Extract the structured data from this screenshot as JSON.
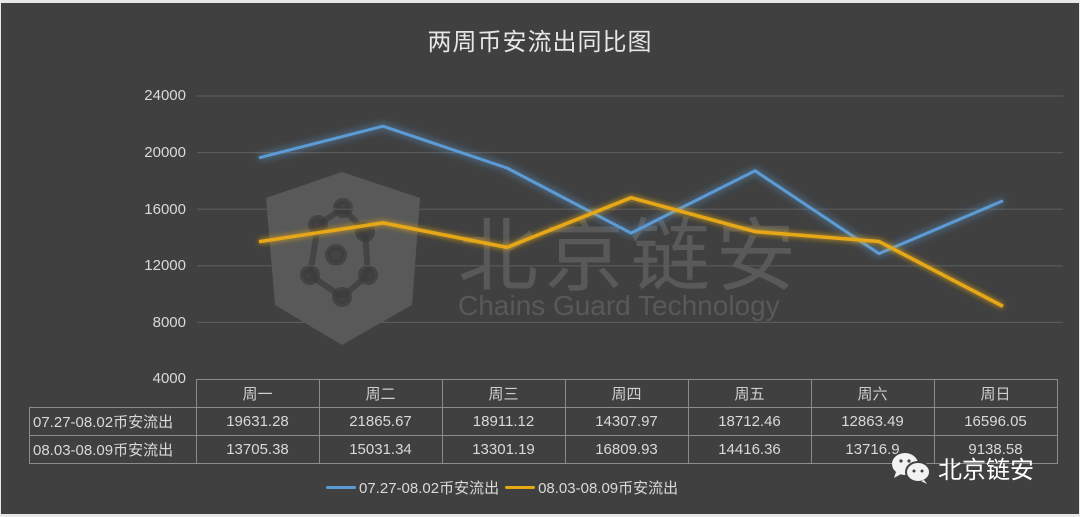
{
  "title": "两周币安流出同比图",
  "watermark": {
    "cn": "北京链安",
    "en": "Chains Guard Technology",
    "icon": "shield-hexagon-logo-icon"
  },
  "brand": {
    "icon": "wechat-icon",
    "label": "北京链安"
  },
  "y_axis": {
    "ticks": [
      "24000",
      "20000",
      "16000",
      "12000",
      "8000",
      "4000"
    ]
  },
  "table": {
    "columns": [
      "周一",
      "周二",
      "周三",
      "周四",
      "周五",
      "周六",
      "周日"
    ],
    "rows": [
      {
        "label": "07.27-08.02币安流出",
        "values": [
          "19631.28",
          "21865.67",
          "18911.12",
          "14307.97",
          "18712.46",
          "12863.49",
          "16596.05"
        ]
      },
      {
        "label": "08.03-08.09币安流出",
        "values": [
          "13705.38",
          "15031.34",
          "13301.19",
          "16809.93",
          "14416.36",
          "13716.9",
          "9138.58"
        ]
      }
    ]
  },
  "legend": [
    {
      "label": "07.27-08.02币安流出",
      "color": "#5b9bd5"
    },
    {
      "label": "08.03-08.09币安流出",
      "color": "#e6a817"
    }
  ],
  "chart_data": {
    "type": "line",
    "title": "两周币安流出同比图",
    "categories": [
      "周一",
      "周二",
      "周三",
      "周四",
      "周五",
      "周六",
      "周日"
    ],
    "series": [
      {
        "name": "07.27-08.02币安流出",
        "color": "#5b9bd5",
        "values": [
          19631.28,
          21865.67,
          18911.12,
          14307.97,
          18712.46,
          12863.49,
          16596.05
        ]
      },
      {
        "name": "08.03-08.09币安流出",
        "color": "#e6a817",
        "values": [
          13705.38,
          15031.34,
          13301.19,
          16809.93,
          14416.36,
          13716.9,
          9138.58
        ]
      }
    ],
    "xlabel": "",
    "ylabel": "",
    "ylim": [
      4000,
      24000
    ],
    "yticks": [
      4000,
      8000,
      12000,
      16000,
      20000,
      24000
    ],
    "grid": true,
    "legend_position": "bottom",
    "data_table": true
  }
}
